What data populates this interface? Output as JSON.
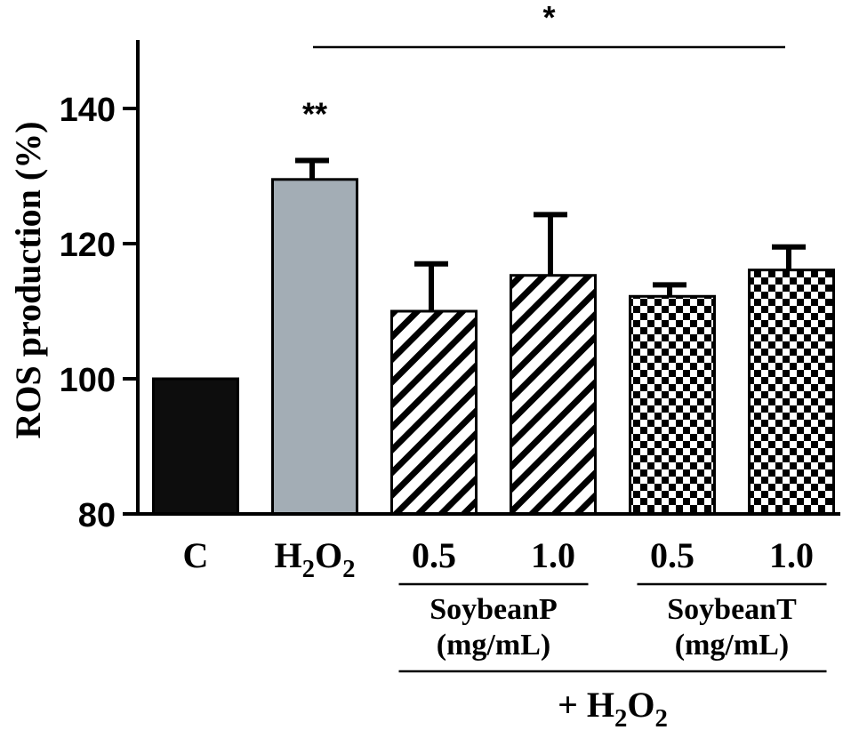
{
  "chart_data": {
    "type": "bar",
    "ylabel": "ROS production (%)",
    "ylim": [
      80,
      150
    ],
    "yticks": [
      80,
      100,
      120,
      140
    ],
    "categories": [
      "C",
      "H2O2",
      "0.5",
      "1.0",
      "0.5",
      "1.0"
    ],
    "values": [
      100,
      129.5,
      110,
      115.3,
      112.2,
      116.1
    ],
    "errors": [
      0,
      2.8,
      7.0,
      9.0,
      1.7,
      3.4
    ],
    "fills": [
      "solid-black",
      "solid-gray",
      "diagonal-stripes",
      "diagonal-stripes",
      "checkerboard",
      "checkerboard"
    ],
    "annotations": [
      {
        "text": "**",
        "bar_index": 1
      },
      {
        "text": "*",
        "from_bar": 1,
        "to_bar": 5
      }
    ],
    "groups": [
      {
        "line1": "SoybeanP",
        "line2": "(mg/mL)",
        "bars": [
          2,
          3
        ]
      },
      {
        "line1": "SoybeanT",
        "line2": "(mg/mL)",
        "bars": [
          4,
          5
        ]
      }
    ],
    "treatment_label": "+ H2O2",
    "treatment_bars": [
      2,
      5
    ],
    "grid": false,
    "legend": "none",
    "colors": {
      "control": "#0d0d0d",
      "h2o2": "#a3adb5",
      "axis": "#000000"
    }
  }
}
